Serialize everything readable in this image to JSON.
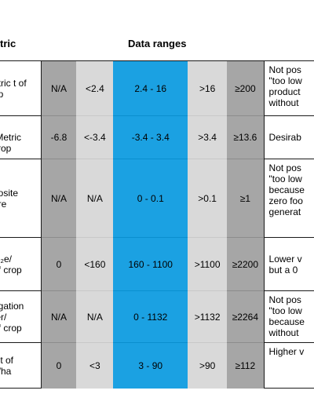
{
  "header": {
    "metric_label": "tric",
    "ranges_label": "Data ranges"
  },
  "rows": [
    {
      "metric": [
        "etric t of",
        "op"
      ],
      "c1": "N/A",
      "c2": "<2.4",
      "c3": "2.4 - 16",
      "c4": ">16",
      "c5": "≥200",
      "note": [
        "Not pos",
        "\"too low",
        "product",
        "without"
      ]
    },
    {
      "metric": [
        "P",
        "/Metric",
        "crop"
      ],
      "c1": "-6.8",
      "c2": "<-3.4",
      "c3": "-3.4 - 3.4",
      "c4": ">3.4",
      "c5": "≥13.6",
      "note": [
        "Desirab"
      ]
    },
    {
      "metric": [
        "posite",
        "ore"
      ],
      "c1": "N/A",
      "c2": "N/A",
      "c3": "0 - 0.1",
      "c4": ">0.1",
      "c5": "≥1",
      "note": [
        "Not pos",
        "\"too low",
        "because",
        "zero foo",
        "generat"
      ]
    },
    {
      "metric": [
        "O₂e/",
        "of crop"
      ],
      "c1": "0",
      "c2": "<160",
      "c3": "160 - 1100",
      "c4": ">1100",
      "c5": "≥2200",
      "note": [
        "Lower v",
        "but a 0"
      ]
    },
    {
      "metric": [
        "rigation",
        "ter/",
        "of crop"
      ],
      "c1": "N/A",
      "c2": "N/A",
      "c3": "0 - 1132",
      "c4": ">1132",
      "c5": "≥2264",
      "note": [
        "Not pos",
        "\"too low",
        "because",
        "without"
      ]
    },
    {
      "metric": [
        "c t of",
        "o/ha"
      ],
      "c1": "0",
      "c2": "<3",
      "c3": "3 - 90",
      "c4": ">90",
      "c5": "≥112",
      "note": [
        "Higher v"
      ]
    }
  ]
}
